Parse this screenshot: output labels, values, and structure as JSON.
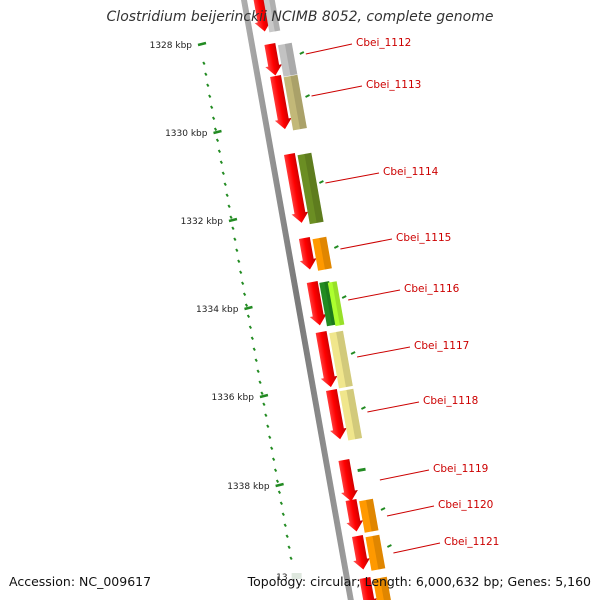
{
  "header": {
    "title": "Clostridium beijerinckii NCIMB 8052, complete genome"
  },
  "footer": {
    "accession": "Accession: NC_009617",
    "summary": "Topology: circular; Length: 6,000,632 bp; Genes: 5,160"
  },
  "ruler": {
    "ticks": [
      "1328 kbp",
      "1330 kbp",
      "1332 kbp",
      "1334 kbp",
      "1336 kbp",
      "1338 kbp"
    ],
    "partial_tick": "13"
  },
  "genes": [
    {
      "name": "Cbei_1112",
      "color": "#c2c2c2"
    },
    {
      "name": "Cbei_1113",
      "color": "#c2b878"
    },
    {
      "name": "Cbei_1114",
      "color": "#6b8e23"
    },
    {
      "name": "Cbei_1115",
      "color": "#ff9900"
    },
    {
      "name": "Cbei_1116",
      "color": "#32cd32"
    },
    {
      "name": "Cbei_1117",
      "color": "#f0e68c"
    },
    {
      "name": "Cbei_1118",
      "color": "#f0e68c"
    },
    {
      "name": "Cbei_1119",
      "color": "#228b22"
    },
    {
      "name": "Cbei_1120",
      "color": "#ff9900"
    },
    {
      "name": "Cbei_1121",
      "color": "#ff9900"
    }
  ],
  "colors": {
    "cds_strand": "#ff0000",
    "backbone": "#888888",
    "ruler": "#228b22",
    "label": "#cc0000"
  }
}
